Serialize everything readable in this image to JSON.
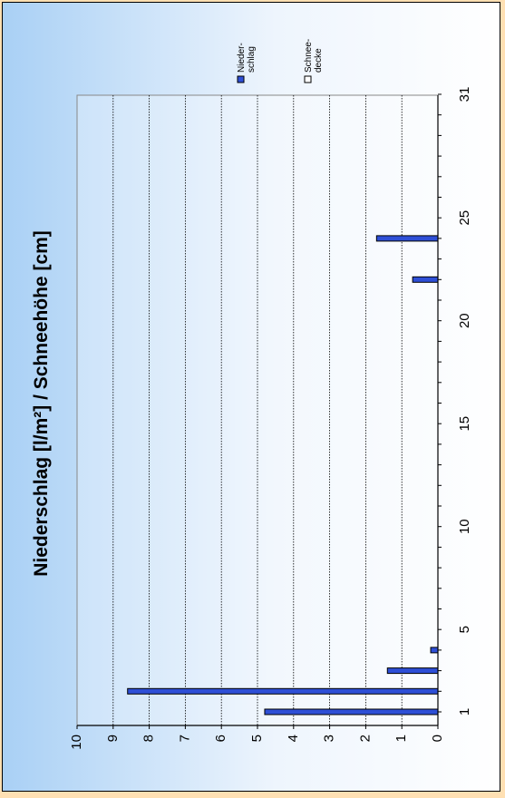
{
  "chart_data": {
    "type": "bar",
    "orientation": "rotated-90",
    "title": "Niederschlag [l/m²] / Schneehöhe [cm]",
    "x_ticks": [
      1,
      5,
      10,
      15,
      20,
      25,
      31
    ],
    "x_range": [
      1,
      31
    ],
    "y_ticks": [
      0,
      1,
      2,
      3,
      4,
      5,
      6,
      7,
      8,
      9,
      10
    ],
    "ylim": [
      0,
      10
    ],
    "grid": true,
    "legend_position": "top-right",
    "legend": [
      "Nieder-\nschlag",
      "Schnee-\ndecke"
    ],
    "series": [
      {
        "name": "Nieder-\nschlag",
        "color": "#2e4fd6",
        "x": [
          1,
          2,
          3,
          4,
          22,
          24
        ],
        "values": [
          4.8,
          8.6,
          1.4,
          0.2,
          0.7,
          1.7
        ]
      },
      {
        "name": "Schnee-\ndecke",
        "color": "#ffffff",
        "x": [],
        "values": []
      }
    ]
  }
}
